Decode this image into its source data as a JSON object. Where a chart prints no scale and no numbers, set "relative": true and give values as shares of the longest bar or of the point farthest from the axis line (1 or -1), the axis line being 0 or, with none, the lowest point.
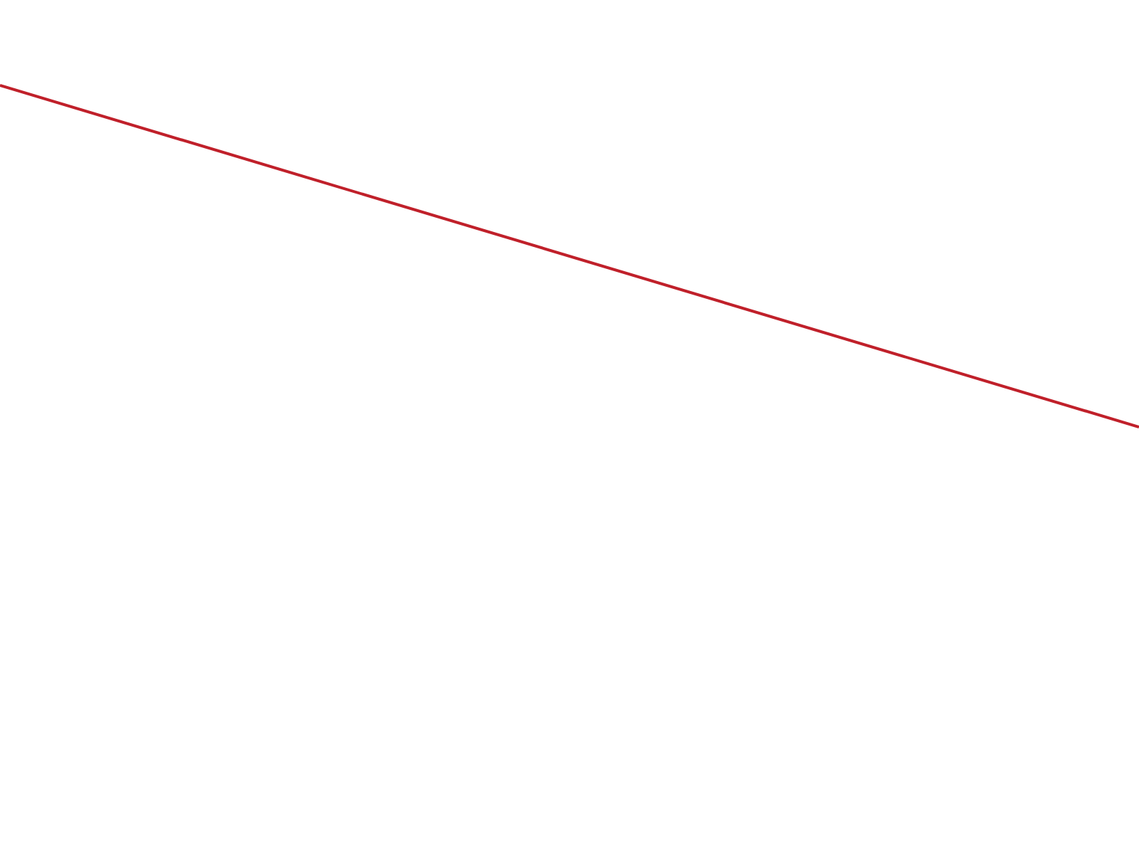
{
  "chart_data": {
    "type": "line",
    "relative": true,
    "categories": [
      null,
      null
    ],
    "marker": "none",
    "legend": false,
    "series": [
      {
        "color": "#c0202a",
        "values": [
          1,
          0
        ]
      }
    ]
  }
}
